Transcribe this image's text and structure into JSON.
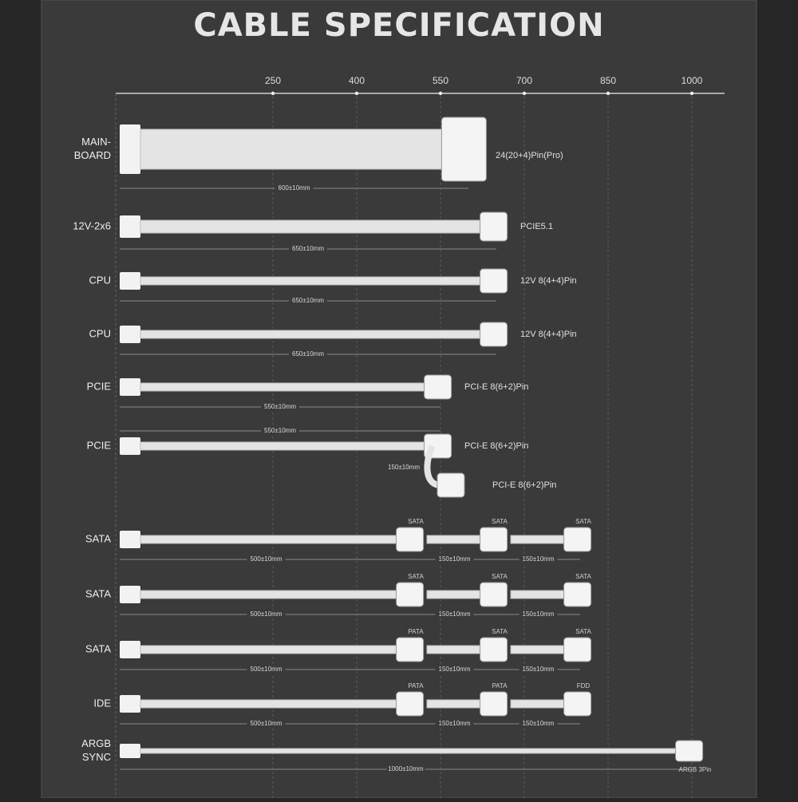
{
  "title": "CABLE SPECIFICATION",
  "axis": {
    "ticks": [
      250,
      400,
      550,
      700,
      850,
      1000
    ]
  },
  "cables": [
    {
      "name": [
        "MAIN-",
        "BOARD"
      ],
      "label_pos": "right",
      "segments": [
        {
          "length": 600,
          "label": "600±10mm",
          "connector": "24(20+4)Pin(Pro)"
        }
      ]
    },
    {
      "name": [
        "12V-2x6"
      ],
      "label_pos": "right",
      "segments": [
        {
          "length": 650,
          "label": "650±10mm",
          "connector": "PCIE5.1"
        }
      ]
    },
    {
      "name": [
        "CPU"
      ],
      "label_pos": "right",
      "segments": [
        {
          "length": 650,
          "label": "650±10mm",
          "connector": "12V 8(4+4)Pin"
        }
      ]
    },
    {
      "name": [
        "CPU"
      ],
      "label_pos": "right",
      "segments": [
        {
          "length": 650,
          "label": "650±10mm",
          "connector": "12V 8(4+4)Pin"
        }
      ]
    },
    {
      "name": [
        "PCIE"
      ],
      "label_pos": "right",
      "segments": [
        {
          "length": 550,
          "label": "550±10mm",
          "connector": "PCI-E 8(6+2)Pin"
        }
      ]
    },
    {
      "name": [
        "PCIE"
      ],
      "label_pos": "right",
      "segments": [
        {
          "length": 550,
          "label": "550±10mm",
          "connector": "PCI-E 8(6+2)Pin"
        }
      ],
      "branch": {
        "length": 150,
        "label": "150±10mm",
        "connector": "PCI-E 8(6+2)Pin"
      }
    },
    {
      "name": [
        "SATA"
      ],
      "label_pos": "top",
      "segments": [
        {
          "length": 500,
          "label": "500±10mm",
          "connector": "SATA"
        },
        {
          "length": 150,
          "label": "150±10mm",
          "connector": "SATA"
        },
        {
          "length": 150,
          "label": "150±10mm",
          "connector": "SATA"
        }
      ]
    },
    {
      "name": [
        "SATA"
      ],
      "label_pos": "top",
      "segments": [
        {
          "length": 500,
          "label": "500±10mm",
          "connector": "SATA"
        },
        {
          "length": 150,
          "label": "150±10mm",
          "connector": "SATA"
        },
        {
          "length": 150,
          "label": "150±10mm",
          "connector": "SATA"
        }
      ]
    },
    {
      "name": [
        "SATA"
      ],
      "label_pos": "top",
      "segments": [
        {
          "length": 500,
          "label": "500±10mm",
          "connector": "PATA"
        },
        {
          "length": 150,
          "label": "150±10mm",
          "connector": "SATA"
        },
        {
          "length": 150,
          "label": "150±10mm",
          "connector": "SATA"
        }
      ]
    },
    {
      "name": [
        "IDE"
      ],
      "label_pos": "top",
      "segments": [
        {
          "length": 500,
          "label": "500±10mm",
          "connector": "PATA"
        },
        {
          "length": 150,
          "label": "150±10mm",
          "connector": "PATA"
        },
        {
          "length": 150,
          "label": "150±10mm",
          "connector": "FDD"
        }
      ]
    },
    {
      "name": [
        "ARGB",
        "SYNC"
      ],
      "label_pos": "below",
      "segments": [
        {
          "length": 1000,
          "label": "1000±10mm",
          "connector": "ARGB 3Pin"
        }
      ]
    }
  ]
}
